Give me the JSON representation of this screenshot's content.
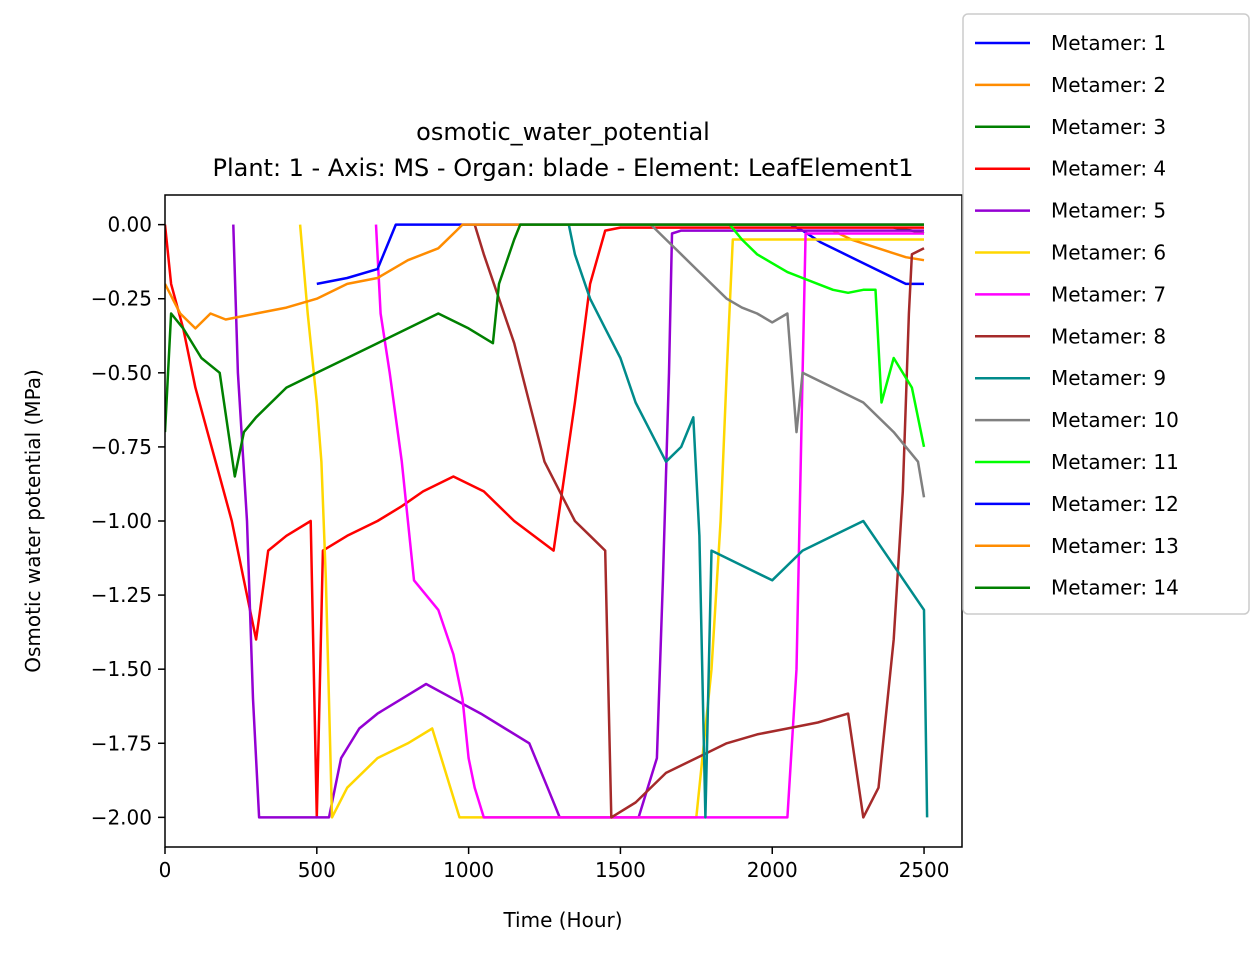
{
  "chart_data": {
    "type": "line",
    "title": "osmotic_water_potential",
    "subtitle": "Plant: 1 - Axis: MS - Organ: blade - Element: LeafElement1",
    "xlabel": "Time (Hour)",
    "ylabel": "Osmotic water potential (MPa)",
    "xlim": [
      0,
      2625
    ],
    "ylim": [
      -2.1,
      0.1
    ],
    "xticks": [
      0,
      500,
      1000,
      1500,
      2000,
      2500
    ],
    "yticks": [
      0.0,
      -0.25,
      -0.5,
      -0.75,
      -1.0,
      -1.25,
      -1.5,
      -1.75,
      -2.0
    ],
    "xtick_labels": [
      "0",
      "500",
      "1000",
      "1500",
      "2000",
      "2500"
    ],
    "ytick_labels": [
      "0.00",
      "−0.25",
      "−0.50",
      "−0.75",
      "−1.00",
      "−1.25",
      "−1.50",
      "−1.75",
      "−2.00"
    ],
    "grid": false,
    "legend_position": "outside-top-right",
    "series": [
      {
        "name": "Metamer: 1",
        "color": "#0000ff",
        "points": [
          [
            2060,
            0
          ],
          [
            2100,
            -0.02
          ],
          [
            2160,
            -0.06
          ],
          [
            2220,
            -0.09
          ],
          [
            2280,
            -0.12
          ],
          [
            2340,
            -0.15
          ],
          [
            2400,
            -0.18
          ],
          [
            2440,
            -0.2
          ],
          [
            2500,
            -0.2
          ]
        ]
      },
      {
        "name": "Metamer: 2",
        "color": "#ff8c00",
        "points": [
          [
            2200,
            -0.02
          ],
          [
            2260,
            -0.05
          ],
          [
            2320,
            -0.07
          ],
          [
            2380,
            -0.09
          ],
          [
            2440,
            -0.11
          ],
          [
            2500,
            -0.12
          ]
        ]
      },
      {
        "name": "Metamer: 3",
        "color": "#008000",
        "points": [
          [
            2400,
            -0.01
          ],
          [
            2460,
            -0.02
          ],
          [
            2500,
            -0.03
          ]
        ]
      },
      {
        "name": "Metamer: 4",
        "color": "#ff0000",
        "points": [
          [
            0,
            0
          ],
          [
            20,
            -0.2
          ],
          [
            60,
            -0.35
          ],
          [
            100,
            -0.55
          ],
          [
            140,
            -0.7
          ],
          [
            180,
            -0.85
          ],
          [
            220,
            -1.0
          ],
          [
            260,
            -1.2
          ],
          [
            300,
            -1.4
          ],
          [
            340,
            -1.1
          ],
          [
            400,
            -1.05
          ],
          [
            480,
            -1.0
          ],
          [
            500,
            -2.0
          ],
          [
            520,
            -1.1
          ],
          [
            600,
            -1.05
          ],
          [
            700,
            -1.0
          ],
          [
            780,
            -0.95
          ],
          [
            850,
            -0.9
          ],
          [
            950,
            -0.85
          ],
          [
            1050,
            -0.9
          ],
          [
            1150,
            -1.0
          ],
          [
            1280,
            -1.1
          ],
          [
            1350,
            -0.6
          ],
          [
            1400,
            -0.2
          ],
          [
            1450,
            -0.02
          ],
          [
            1500,
            -0.01
          ],
          [
            2500,
            -0.01
          ]
        ]
      },
      {
        "name": "Metamer: 5",
        "color": "#9400d3",
        "points": [
          [
            225,
            0
          ],
          [
            240,
            -0.5
          ],
          [
            270,
            -1.0
          ],
          [
            290,
            -1.6
          ],
          [
            310,
            -2.0
          ],
          [
            540,
            -2.0
          ],
          [
            580,
            -1.8
          ],
          [
            640,
            -1.7
          ],
          [
            700,
            -1.65
          ],
          [
            780,
            -1.6
          ],
          [
            860,
            -1.55
          ],
          [
            950,
            -1.6
          ],
          [
            1040,
            -1.65
          ],
          [
            1120,
            -1.7
          ],
          [
            1200,
            -1.75
          ],
          [
            1260,
            -1.9
          ],
          [
            1300,
            -2.0
          ],
          [
            1450,
            -2.0
          ],
          [
            1560,
            -2.0
          ],
          [
            1620,
            -1.8
          ],
          [
            1640,
            -1.2
          ],
          [
            1660,
            -0.5
          ],
          [
            1670,
            -0.03
          ],
          [
            1700,
            -0.02
          ],
          [
            2500,
            -0.02
          ]
        ]
      },
      {
        "name": "Metamer: 6",
        "color": "#ffd700",
        "points": [
          [
            445,
            0
          ],
          [
            470,
            -0.3
          ],
          [
            500,
            -0.6
          ],
          [
            515,
            -0.8
          ],
          [
            530,
            -1.2
          ],
          [
            550,
            -2.0
          ],
          [
            600,
            -1.9
          ],
          [
            700,
            -1.8
          ],
          [
            800,
            -1.75
          ],
          [
            880,
            -1.7
          ],
          [
            940,
            -1.9
          ],
          [
            970,
            -2.0
          ],
          [
            1750,
            -2.0
          ],
          [
            1800,
            -1.5
          ],
          [
            1830,
            -1.0
          ],
          [
            1850,
            -0.5
          ],
          [
            1870,
            -0.05
          ],
          [
            2500,
            -0.05
          ]
        ]
      },
      {
        "name": "Metamer: 7",
        "color": "#ff00ff",
        "points": [
          [
            695,
            0
          ],
          [
            710,
            -0.3
          ],
          [
            740,
            -0.5
          ],
          [
            780,
            -0.8
          ],
          [
            800,
            -1.0
          ],
          [
            820,
            -1.2
          ],
          [
            860,
            -1.25
          ],
          [
            900,
            -1.3
          ],
          [
            950,
            -1.45
          ],
          [
            980,
            -1.6
          ],
          [
            1000,
            -1.8
          ],
          [
            1020,
            -1.9
          ],
          [
            1050,
            -2.0
          ],
          [
            1460,
            -2.0
          ],
          [
            2050,
            -2.0
          ],
          [
            2080,
            -1.5
          ],
          [
            2100,
            -0.5
          ],
          [
            2110,
            -0.03
          ],
          [
            2500,
            -0.03
          ]
        ]
      },
      {
        "name": "Metamer: 8",
        "color": "#a52a2a",
        "points": [
          [
            1020,
            0
          ],
          [
            1050,
            -0.1
          ],
          [
            1100,
            -0.25
          ],
          [
            1150,
            -0.4
          ],
          [
            1200,
            -0.6
          ],
          [
            1250,
            -0.8
          ],
          [
            1300,
            -0.9
          ],
          [
            1350,
            -1.0
          ],
          [
            1400,
            -1.05
          ],
          [
            1450,
            -1.1
          ],
          [
            1470,
            -2.0
          ],
          [
            1550,
            -1.95
          ],
          [
            1650,
            -1.85
          ],
          [
            1750,
            -1.8
          ],
          [
            1850,
            -1.75
          ],
          [
            1950,
            -1.72
          ],
          [
            2050,
            -1.7
          ],
          [
            2150,
            -1.68
          ],
          [
            2250,
            -1.65
          ],
          [
            2300,
            -2.0
          ],
          [
            2350,
            -1.9
          ],
          [
            2400,
            -1.4
          ],
          [
            2430,
            -0.9
          ],
          [
            2450,
            -0.3
          ],
          [
            2460,
            -0.1
          ],
          [
            2500,
            -0.08
          ]
        ]
      },
      {
        "name": "Metamer: 9",
        "color": "#008b8b",
        "points": [
          [
            1330,
            0
          ],
          [
            1350,
            -0.1
          ],
          [
            1400,
            -0.25
          ],
          [
            1450,
            -0.35
          ],
          [
            1500,
            -0.45
          ],
          [
            1550,
            -0.6
          ],
          [
            1600,
            -0.7
          ],
          [
            1650,
            -0.8
          ],
          [
            1700,
            -0.75
          ],
          [
            1740,
            -0.65
          ],
          [
            1760,
            -1.05
          ],
          [
            1780,
            -2.0
          ],
          [
            1800,
            -1.1
          ],
          [
            1900,
            -1.15
          ],
          [
            2000,
            -1.2
          ],
          [
            2100,
            -1.1
          ],
          [
            2200,
            -1.05
          ],
          [
            2300,
            -1.0
          ],
          [
            2400,
            -1.15
          ],
          [
            2500,
            -1.3
          ],
          [
            2510,
            -2.0
          ]
        ]
      },
      {
        "name": "Metamer: 10",
        "color": "#808080",
        "points": [
          [
            1600,
            0
          ],
          [
            1650,
            -0.05
          ],
          [
            1700,
            -0.1
          ],
          [
            1750,
            -0.15
          ],
          [
            1800,
            -0.2
          ],
          [
            1850,
            -0.25
          ],
          [
            1900,
            -0.28
          ],
          [
            1950,
            -0.3
          ],
          [
            2000,
            -0.33
          ],
          [
            2050,
            -0.3
          ],
          [
            2080,
            -0.7
          ],
          [
            2100,
            -0.5
          ],
          [
            2200,
            -0.55
          ],
          [
            2300,
            -0.6
          ],
          [
            2400,
            -0.7
          ],
          [
            2480,
            -0.8
          ],
          [
            2500,
            -0.92
          ]
        ]
      },
      {
        "name": "Metamer: 11",
        "color": "#00ff00",
        "points": [
          [
            1860,
            0
          ],
          [
            1900,
            -0.05
          ],
          [
            1950,
            -0.1
          ],
          [
            2000,
            -0.13
          ],
          [
            2050,
            -0.16
          ],
          [
            2100,
            -0.18
          ],
          [
            2150,
            -0.2
          ],
          [
            2200,
            -0.22
          ],
          [
            2250,
            -0.23
          ],
          [
            2300,
            -0.22
          ],
          [
            2340,
            -0.22
          ],
          [
            2360,
            -0.6
          ],
          [
            2400,
            -0.45
          ],
          [
            2460,
            -0.55
          ],
          [
            2500,
            -0.75
          ]
        ]
      },
      {
        "name": "Metamer: 12",
        "color": "#0000ff",
        "points": [
          [
            500,
            -0.2
          ],
          [
            600,
            -0.18
          ],
          [
            700,
            -0.15
          ],
          [
            740,
            -0.05
          ],
          [
            760,
            0
          ],
          [
            2500,
            0
          ]
        ]
      },
      {
        "name": "Metamer: 13",
        "color": "#ff8c00",
        "points": [
          [
            0,
            -0.2
          ],
          [
            50,
            -0.3
          ],
          [
            100,
            -0.35
          ],
          [
            150,
            -0.3
          ],
          [
            200,
            -0.32
          ],
          [
            300,
            -0.3
          ],
          [
            400,
            -0.28
          ],
          [
            500,
            -0.25
          ],
          [
            600,
            -0.2
          ],
          [
            700,
            -0.18
          ],
          [
            800,
            -0.12
          ],
          [
            900,
            -0.08
          ],
          [
            960,
            -0.02
          ],
          [
            980,
            0
          ],
          [
            2500,
            0
          ]
        ]
      },
      {
        "name": "Metamer: 14",
        "color": "#008000",
        "points": [
          [
            0,
            -0.7
          ],
          [
            20,
            -0.3
          ],
          [
            60,
            -0.35
          ],
          [
            120,
            -0.45
          ],
          [
            180,
            -0.5
          ],
          [
            230,
            -0.85
          ],
          [
            260,
            -0.7
          ],
          [
            300,
            -0.65
          ],
          [
            400,
            -0.55
          ],
          [
            500,
            -0.5
          ],
          [
            600,
            -0.45
          ],
          [
            700,
            -0.4
          ],
          [
            800,
            -0.35
          ],
          [
            900,
            -0.3
          ],
          [
            1000,
            -0.35
          ],
          [
            1080,
            -0.4
          ],
          [
            1100,
            -0.2
          ],
          [
            1150,
            -0.05
          ],
          [
            1170,
            0
          ],
          [
            2500,
            0
          ]
        ]
      }
    ]
  }
}
